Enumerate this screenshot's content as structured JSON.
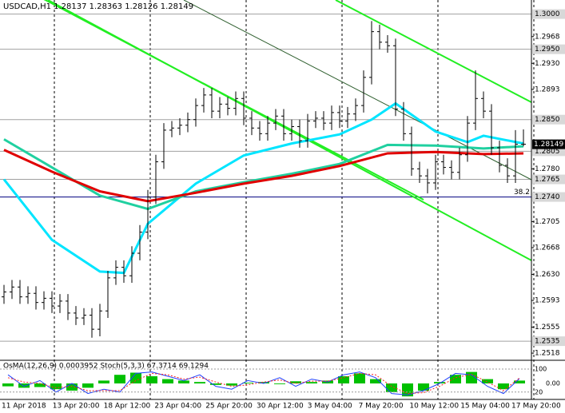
{
  "chart_data": {
    "type": "ohlc",
    "title": "USDCAD,H1 1.28137 1.28363 1.28126 1.28149",
    "color": "#000000",
    "open": [
      1.2598,
      1.2605,
      1.2612,
      1.2598,
      1.2603,
      1.259,
      1.2596,
      1.2585,
      1.2592,
      1.2575,
      1.2568,
      1.2572,
      1.2552,
      1.2578,
      1.2625,
      1.264,
      1.2628,
      1.266,
      1.269,
      1.274,
      1.279,
      1.2835,
      1.2838,
      1.2842,
      1.285,
      1.287,
      1.2885,
      1.2862,
      1.2872,
      1.2866,
      1.288,
      1.2852,
      1.2838,
      1.283,
      1.2845,
      1.2855,
      1.283,
      1.284,
      1.282,
      1.2848,
      1.2852,
      1.2845,
      1.286,
      1.2848,
      1.2858,
      1.287,
      1.291,
      1.2975,
      1.296,
      1.2955,
      1.2865,
      1.283,
      1.278,
      1.277,
      1.276,
      1.279,
      1.2782,
      1.2775,
      1.28,
      1.2845,
      1.288,
      1.2862,
      1.281,
      1.2785,
      1.277,
      1.2815
    ],
    "high": [
      1.2615,
      1.2622,
      1.2622,
      1.2613,
      1.2613,
      1.2606,
      1.2606,
      1.2602,
      1.2602,
      1.2585,
      1.2582,
      1.2582,
      1.2588,
      1.2635,
      1.265,
      1.265,
      1.267,
      1.27,
      1.275,
      1.28,
      1.2845,
      1.2848,
      1.2852,
      1.286,
      1.288,
      1.2895,
      1.2895,
      1.2882,
      1.2882,
      1.289,
      1.289,
      1.2862,
      1.2848,
      1.2855,
      1.2865,
      1.2865,
      1.285,
      1.285,
      1.2858,
      1.2862,
      1.2862,
      1.287,
      1.287,
      1.2868,
      1.288,
      1.292,
      1.299,
      1.2985,
      1.297,
      1.2965,
      1.2875,
      1.284,
      1.279,
      1.278,
      1.28,
      1.28,
      1.2792,
      1.281,
      1.2855,
      1.292,
      1.289,
      1.2872,
      1.282,
      1.2795,
      1.2835,
      1.2836
    ],
    "low": [
      1.2588,
      1.2595,
      1.2588,
      1.2588,
      1.258,
      1.258,
      1.2575,
      1.2575,
      1.2565,
      1.2558,
      1.2558,
      1.254,
      1.2542,
      1.2568,
      1.2615,
      1.2618,
      1.2618,
      1.265,
      1.268,
      1.273,
      1.278,
      1.2825,
      1.2828,
      1.2832,
      1.284,
      1.286,
      1.2852,
      1.2852,
      1.2856,
      1.2856,
      1.2842,
      1.2828,
      1.282,
      1.282,
      1.2835,
      1.282,
      1.282,
      1.281,
      1.281,
      1.2838,
      1.2835,
      1.2835,
      1.2838,
      1.2838,
      1.2848,
      1.286,
      1.29,
      1.295,
      1.2945,
      1.2855,
      1.282,
      1.277,
      1.276,
      1.2745,
      1.275,
      1.2772,
      1.2765,
      1.2765,
      1.279,
      1.2835,
      1.2852,
      1.28,
      1.2775,
      1.276,
      1.276,
      1.2812
    ],
    "close": [
      1.2605,
      1.2612,
      1.2598,
      1.2603,
      1.259,
      1.2596,
      1.2585,
      1.2592,
      1.2575,
      1.2568,
      1.2572,
      1.2552,
      1.2578,
      1.2625,
      1.264,
      1.2628,
      1.266,
      1.269,
      1.274,
      1.279,
      1.2835,
      1.2838,
      1.2842,
      1.285,
      1.287,
      1.2885,
      1.2862,
      1.2872,
      1.2866,
      1.288,
      1.2852,
      1.2838,
      1.283,
      1.2845,
      1.2855,
      1.283,
      1.284,
      1.282,
      1.2848,
      1.2852,
      1.2845,
      1.286,
      1.2848,
      1.2858,
      1.287,
      1.291,
      1.2975,
      1.296,
      1.2955,
      1.2865,
      1.283,
      1.278,
      1.277,
      1.276,
      1.279,
      1.2782,
      1.2775,
      1.28,
      1.2845,
      1.288,
      1.2862,
      1.281,
      1.2785,
      1.277,
      1.2815,
      1.2815
    ],
    "x_labels": [
      "11 Apr 2018",
      "13 Apr 20:00",
      "18 Apr 12:00",
      "23 Apr 04:00",
      "25 Apr 20:00",
      "30 Apr 12:00",
      "3 May 04:00",
      "7 May 20:00",
      "10 May 12:00",
      "15 May 04:00",
      "17 May 20:00"
    ],
    "ylim": [
      1.2509,
      1.302
    ],
    "yticks": [
      {
        "value": 1.2968,
        "label": "1.2968"
      },
      {
        "value": 1.293,
        "label": "1.2930"
      },
      {
        "value": 1.2893,
        "label": "1.2893"
      },
      {
        "value": 1.278,
        "label": "1.2780"
      },
      {
        "value": 1.2705,
        "label": "1.2705"
      },
      {
        "value": 1.2668,
        "label": "1.2668"
      },
      {
        "value": 1.263,
        "label": "1.2630"
      },
      {
        "value": 1.2593,
        "label": "1.2593"
      },
      {
        "value": 1.2555,
        "label": "1.2555"
      },
      {
        "value": 1.2518,
        "label": "1.2518"
      }
    ],
    "levels": [
      {
        "value": 1.3,
        "label": "1.3000",
        "color": "#a0a0a0"
      },
      {
        "value": 1.295,
        "label": "1.2950",
        "color": "#a0a0a0"
      },
      {
        "value": 1.285,
        "label": "1.2850",
        "color": "#a0a0a0"
      },
      {
        "value": 1.2805,
        "label": "1.2805",
        "color": "#a0a0a0"
      },
      {
        "value": 1.2765,
        "label": "1.2765",
        "color": "#a0a0a0"
      },
      {
        "value": 1.274,
        "label": "1.2740",
        "color": "#000080",
        "fib_label": "38.2"
      },
      {
        "value": 1.2535,
        "label": "1.2535",
        "color": "#a0a0a0"
      }
    ],
    "last_price": 1.28149,
    "moving_averages": [
      {
        "color": "#00e5ff",
        "x": [
          0,
          6,
          12,
          15,
          18,
          24,
          30,
          36,
          42,
          46,
          49,
          54,
          58,
          60,
          65
        ],
        "values": [
          1.2765,
          1.2679,
          1.2634,
          1.2632,
          1.2702,
          1.2759,
          1.2799,
          1.2816,
          1.2829,
          1.285,
          1.2873,
          1.2833,
          1.2818,
          1.2827,
          1.2816
        ]
      },
      {
        "color": "#20d0a0",
        "x": [
          0,
          6,
          12,
          18,
          24,
          30,
          36,
          42,
          48,
          54,
          60,
          65
        ],
        "values": [
          1.2822,
          1.2782,
          1.2742,
          1.2723,
          1.2748,
          1.2761,
          1.2773,
          1.2787,
          1.2814,
          1.2813,
          1.2809,
          1.2812
        ]
      },
      {
        "color": "#e00000",
        "x": [
          0,
          6,
          12,
          18,
          24,
          30,
          36,
          42,
          48,
          54,
          60,
          65
        ],
        "values": [
          1.2807,
          1.2776,
          1.2748,
          1.2734,
          1.2746,
          1.2759,
          1.277,
          1.2784,
          1.2802,
          1.2804,
          1.2801,
          1.2802
        ]
      }
    ],
    "indicator": {
      "title": "OsMA(12,26,9) 0.0003952  Stoch(5,3,3) 67.3714 69.1294",
      "osma": {
        "color": "#00c000",
        "ylim": [
          -0.002,
          0.002
        ],
        "yticks": [
          {
            "value": 0,
            "label": "0.00"
          }
        ],
        "values": [
          -0.0004,
          -0.0006,
          -0.0005,
          -0.0008,
          -0.001,
          -0.0006,
          0.0004,
          0.0012,
          0.0015,
          0.001,
          0.0006,
          0.0004,
          0.0002,
          -0.0002,
          -0.0003,
          0.0001,
          0.0002,
          -0.0001,
          0.0003,
          0.0002,
          0.0004,
          0.001,
          0.0014,
          0.0006,
          -0.0012,
          -0.0018,
          -0.001,
          0.0002,
          0.0012,
          0.0016,
          0.0006,
          -0.0008,
          0.0004
        ]
      },
      "stoch": {
        "ylim": [
          0,
          100
        ],
        "yticks": [
          100,
          20
        ],
        "series": [
          {
            "color": "#2040ff",
            "values": [
              80,
              40,
              60,
              20,
              50,
              15,
              30,
              20,
              85,
              90,
              75,
              60,
              80,
              40,
              30,
              60,
              50,
              70,
              40,
              65,
              55,
              80,
              90,
              70,
              15,
              10,
              25,
              50,
              85,
              80,
              40,
              15,
              67
            ]
          },
          {
            "color": "#ff2020",
            "values": [
              70,
              55,
              50,
              35,
              40,
              25,
              25,
              25,
              60,
              85,
              80,
              65,
              72,
              55,
              40,
              45,
              55,
              62,
              50,
              58,
              58,
              70,
              85,
              80,
              40,
              15,
              18,
              40,
              70,
              82,
              55,
              25,
              69
            ]
          }
        ]
      }
    }
  }
}
